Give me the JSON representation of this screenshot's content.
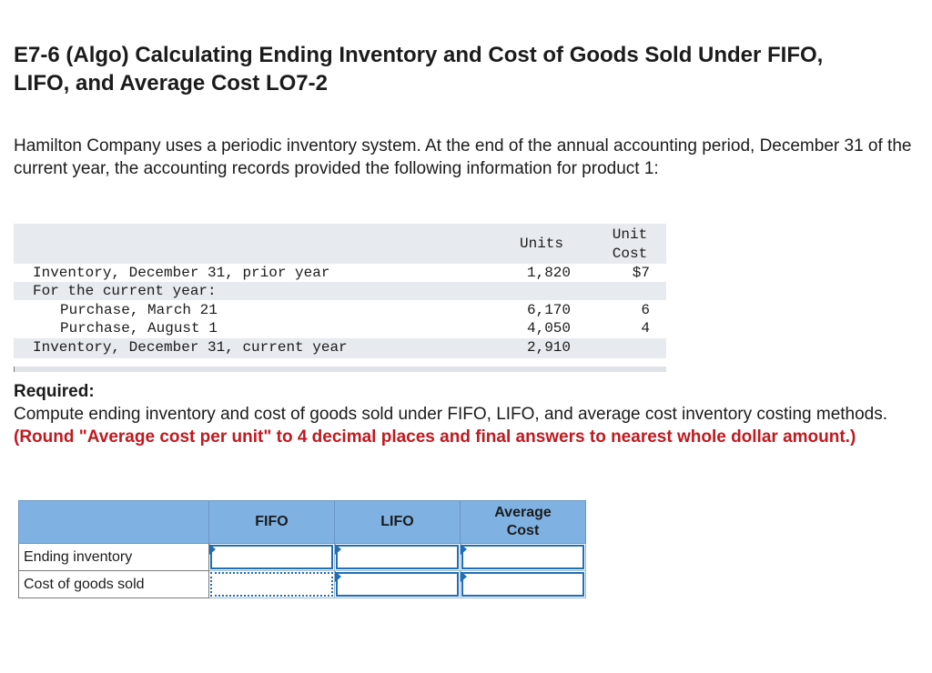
{
  "title_line1": "E7-6 (Algo) Calculating Ending Inventory and Cost of Goods Sold Under FIFO,",
  "title_line2": "LIFO, and Average Cost LO7-2",
  "intro": "Hamilton Company uses a periodic inventory system. At the end of the annual accounting period, December 31 of the current year, the accounting records provided the following information for product 1:",
  "data_table": {
    "header_units": "Units",
    "header_cost_line1": "Unit",
    "header_cost_line2": "Cost",
    "rows": [
      {
        "label": "Inventory, December 31, prior year",
        "units": "1,820",
        "cost": "$7"
      },
      {
        "label": "For the current year:",
        "units": "",
        "cost": ""
      },
      {
        "label": "Purchase, March 21",
        "units": "6,170",
        "cost": "6"
      },
      {
        "label": "Purchase, August 1",
        "units": "4,050",
        "cost": "4"
      },
      {
        "label": "Inventory, December 31, current year",
        "units": "2,910",
        "cost": ""
      }
    ]
  },
  "required": {
    "heading": "Required:",
    "text": "Compute ending inventory and cost of goods sold under FIFO, LIFO, and average cost inventory costing methods. ",
    "note": "(Round \"Average cost per unit\" to 4 decimal places and final answers to nearest whole dollar amount.)"
  },
  "answer_table": {
    "col_fifo": "FIFO",
    "col_lifo": "LIFO",
    "col_avg_line1": "Average",
    "col_avg_line2": "Cost",
    "row_ending": "Ending inventory",
    "row_cogs": "Cost of goods sold",
    "values": {
      "ending_fifo": "",
      "ending_lifo": "",
      "ending_avg": "",
      "cogs_fifo": "",
      "cogs_lifo": "",
      "cogs_avg": ""
    }
  }
}
